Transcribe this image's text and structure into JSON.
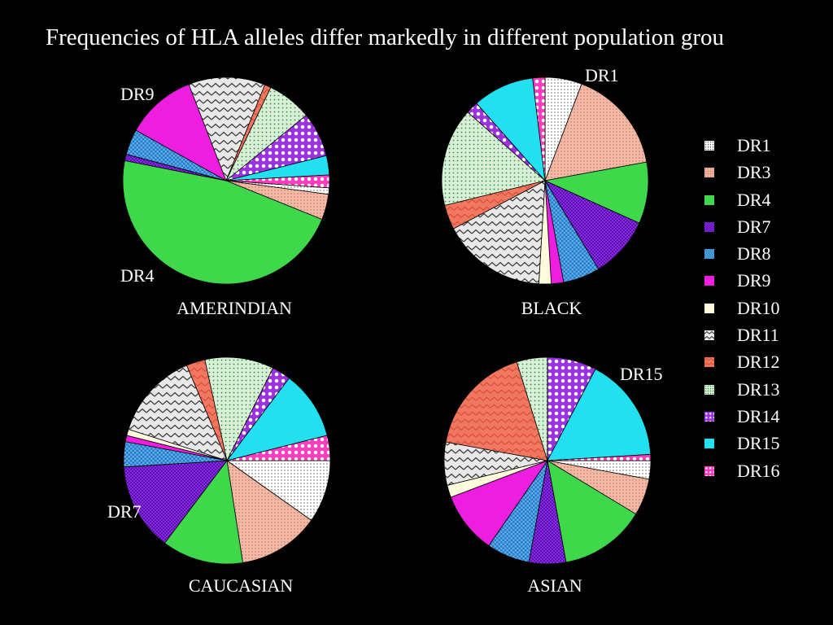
{
  "title": "Frequencies of HLA alleles differ markedly in different population grou",
  "chart_data": {
    "type": "pie",
    "categories": [
      "DR1",
      "DR3",
      "DR4",
      "DR7",
      "DR8",
      "DR9",
      "DR10",
      "DR11",
      "DR12",
      "DR13",
      "DR14",
      "DR15",
      "DR16"
    ],
    "colors": {
      "DR1": "#ffffff",
      "DR3": "#f2b9a6",
      "DR4": "#3fd84a",
      "DR7": "#8a2be2",
      "DR8": "#5aaef0",
      "DR9": "#ee1ee0",
      "DR10": "#fffbdc",
      "DR11": "#e8e8e8",
      "DR12": "#f07860",
      "DR13": "#d8f0d8",
      "DR14": "#9b30e0",
      "DR15": "#22e0f0",
      "DR16": "#ff3cc0"
    },
    "pies": [
      {
        "name": "AMERINDIAN",
        "slices": [
          {
            "allele": "DR1",
            "value": 1
          },
          {
            "allele": "DR3",
            "value": 4
          },
          {
            "allele": "DR4",
            "value": 47
          },
          {
            "allele": "DR7",
            "value": 1
          },
          {
            "allele": "DR8",
            "value": 4
          },
          {
            "allele": "DR9",
            "value": 11
          },
          {
            "allele": "DR11",
            "value": 12
          },
          {
            "allele": "DR12",
            "value": 1
          },
          {
            "allele": "DR13",
            "value": 7
          },
          {
            "allele": "DR14",
            "value": 7
          },
          {
            "allele": "DR15",
            "value": 3
          },
          {
            "allele": "DR16",
            "value": 2
          }
        ],
        "callouts": [
          "DR9",
          "DR4"
        ]
      },
      {
        "name": "BLACK",
        "slices": [
          {
            "allele": "DR1",
            "value": 6
          },
          {
            "allele": "DR3",
            "value": 17
          },
          {
            "allele": "DR4",
            "value": 10
          },
          {
            "allele": "DR7",
            "value": 10
          },
          {
            "allele": "DR8",
            "value": 6
          },
          {
            "allele": "DR9",
            "value": 2
          },
          {
            "allele": "DR10",
            "value": 2
          },
          {
            "allele": "DR11",
            "value": 17
          },
          {
            "allele": "DR12",
            "value": 4
          },
          {
            "allele": "DR13",
            "value": 16
          },
          {
            "allele": "DR14",
            "value": 2
          },
          {
            "allele": "DR15",
            "value": 10
          },
          {
            "allele": "DR16",
            "value": 2
          }
        ],
        "callouts": [
          "DR1"
        ]
      },
      {
        "name": "CAUCASIAN",
        "slices": [
          {
            "allele": "DR1",
            "value": 10
          },
          {
            "allele": "DR3",
            "value": 13
          },
          {
            "allele": "DR4",
            "value": 13
          },
          {
            "allele": "DR7",
            "value": 14
          },
          {
            "allele": "DR8",
            "value": 4
          },
          {
            "allele": "DR9",
            "value": 1
          },
          {
            "allele": "DR10",
            "value": 1
          },
          {
            "allele": "DR11",
            "value": 14
          },
          {
            "allele": "DR12",
            "value": 3
          },
          {
            "allele": "DR13",
            "value": 11
          },
          {
            "allele": "DR14",
            "value": 3
          },
          {
            "allele": "DR15",
            "value": 11
          },
          {
            "allele": "DR16",
            "value": 4
          }
        ],
        "callouts": [
          "DR7"
        ]
      },
      {
        "name": "ASIAN",
        "slices": [
          {
            "allele": "DR1",
            "value": 3
          },
          {
            "allele": "DR3",
            "value": 6
          },
          {
            "allele": "DR4",
            "value": 14
          },
          {
            "allele": "DR7",
            "value": 6
          },
          {
            "allele": "DR8",
            "value": 7
          },
          {
            "allele": "DR9",
            "value": 10
          },
          {
            "allele": "DR10",
            "value": 2
          },
          {
            "allele": "DR11",
            "value": 7
          },
          {
            "allele": "DR12",
            "value": 18
          },
          {
            "allele": "DR13",
            "value": 5
          },
          {
            "allele": "DR14",
            "value": 8
          },
          {
            "allele": "DR15",
            "value": 17
          },
          {
            "allele": "DR16",
            "value": 1
          }
        ],
        "callouts": [
          "DR15"
        ]
      }
    ],
    "legend": [
      "DR1",
      "DR3",
      "DR4",
      "DR7",
      "DR8",
      "DR9",
      "DR10",
      "DR11",
      "DR12",
      "DR13",
      "DR14",
      "DR15",
      "DR16"
    ],
    "legend_position": "right"
  }
}
